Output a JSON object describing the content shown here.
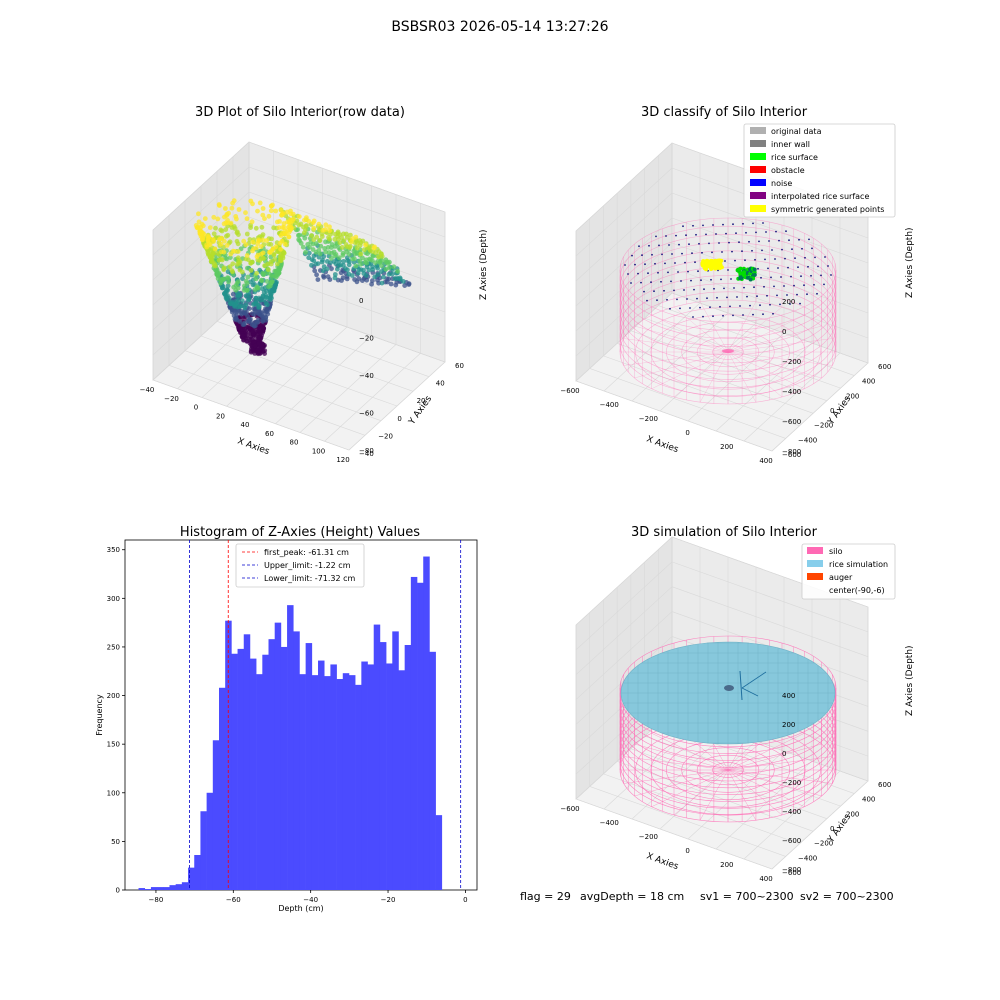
{
  "suptitle": "BSBSR03 2026-05-14 13:27:26",
  "footer": {
    "flag": "flag = 29",
    "avg_depth": "avgDepth = 18 cm",
    "sv1": "sv1 = 700~2300",
    "sv2": "sv2 = 700~2300"
  },
  "colors": {
    "hist_bar": "#4b4bff",
    "peak_line": "#ff0000",
    "limit_line": "#0000cc",
    "silo_pink": "#ff69b4",
    "rice_blue": "#87c8dc",
    "auger": "#ff4500",
    "pane_grid": "#d9d9d9"
  },
  "chart_data": [
    {
      "type": "scatter",
      "title": "3D Plot of Silo Interior(row data)",
      "xlabel": "X Axies",
      "ylabel": "Y Axies",
      "zlabel": "Z Axies (Depth)",
      "x_ticks": [
        "−40",
        "−20",
        "0",
        "20",
        "40",
        "60",
        "80",
        "100",
        "120"
      ],
      "y_ticks": [
        "−40",
        "−20",
        "0",
        "20",
        "40",
        "60"
      ],
      "z_ticks": [
        "0",
        "−20",
        "−40",
        "−60",
        "−80"
      ],
      "colormap": "viridis",
      "note_series": "point cloud of raw depth measurements"
    },
    {
      "type": "scatter",
      "title": "3D classify of Silo Interior",
      "xlabel": "X Axies",
      "ylabel": "Y Axies",
      "zlabel": "Z Axies (Depth)",
      "x_ticks": [
        "−600",
        "−400",
        "−200",
        "0",
        "200",
        "400"
      ],
      "y_ticks": [
        "−600",
        "−400",
        "−200",
        "0",
        "200",
        "400",
        "600"
      ],
      "z_ticks": [
        "200",
        "0",
        "−200",
        "−400",
        "−600",
        "−800"
      ],
      "legend": [
        {
          "label": "original data",
          "color": "#b0b0b0"
        },
        {
          "label": "inner wall",
          "color": "#808080"
        },
        {
          "label": "rice surface",
          "color": "#00ff00"
        },
        {
          "label": "obstacle",
          "color": "#ff0000"
        },
        {
          "label": "noise",
          "color": "#0000ff"
        },
        {
          "label": "interpolated rice surface",
          "color": "#800080"
        },
        {
          "label": "symmetric generated points",
          "color": "#ffff00"
        }
      ],
      "legend_position": "top-right"
    },
    {
      "type": "bar",
      "title": "Histogram of Z-Axies (Height) Values",
      "xlabel": "Depth (cm)",
      "ylabel": "Frequency",
      "xlim": [
        -88,
        3
      ],
      "ylim": [
        0,
        360
      ],
      "x_ticks": [
        -80,
        -60,
        -40,
        -20,
        0
      ],
      "x_tick_labels": [
        "−80",
        "−60",
        "−40",
        "−20",
        "0"
      ],
      "y_ticks": [
        0,
        50,
        100,
        150,
        200,
        250,
        300,
        350
      ],
      "bin_start": -84.5,
      "bin_width": 1.6,
      "values": [
        2,
        1,
        3,
        3,
        3,
        5,
        6,
        8,
        23,
        36,
        81,
        100,
        154,
        208,
        277,
        243,
        248,
        263,
        238,
        222,
        242,
        258,
        275,
        250,
        293,
        266,
        222,
        254,
        221,
        236,
        220,
        232,
        217,
        223,
        221,
        211,
        235,
        232,
        273,
        255,
        233,
        266,
        226,
        252,
        322,
        316,
        343,
        245,
        77
      ],
      "vlines": [
        {
          "name": "first_peak: -61.31 cm",
          "x": -61.31,
          "color": "#ff0000"
        },
        {
          "name": "Upper_limit: -1.22 cm",
          "x": -1.22,
          "color": "#0000cc"
        },
        {
          "name": "Lower_limit: -71.32 cm",
          "x": -71.32,
          "color": "#0000cc"
        }
      ],
      "legend_position": "top-center"
    },
    {
      "type": "scatter",
      "title": "3D simulation of Silo Interior",
      "xlabel": "X Axies",
      "ylabel": "Y Axies",
      "zlabel": "Z Axies (Depth)",
      "x_ticks": [
        "−600",
        "−400",
        "−200",
        "0",
        "200",
        "400"
      ],
      "y_ticks": [
        "−600",
        "−400",
        "−200",
        "0",
        "200",
        "400",
        "600"
      ],
      "z_ticks": [
        "400",
        "200",
        "0",
        "−200",
        "−400",
        "−600",
        "−800"
      ],
      "legend": [
        {
          "label": "silo",
          "color": "#ff69b4"
        },
        {
          "label": "rice simulation",
          "color": "#87ceeb"
        },
        {
          "label": "auger",
          "color": "#ff4500"
        },
        {
          "label": "center(-90,-6)",
          "color": ""
        }
      ],
      "legend_position": "top-right"
    }
  ]
}
